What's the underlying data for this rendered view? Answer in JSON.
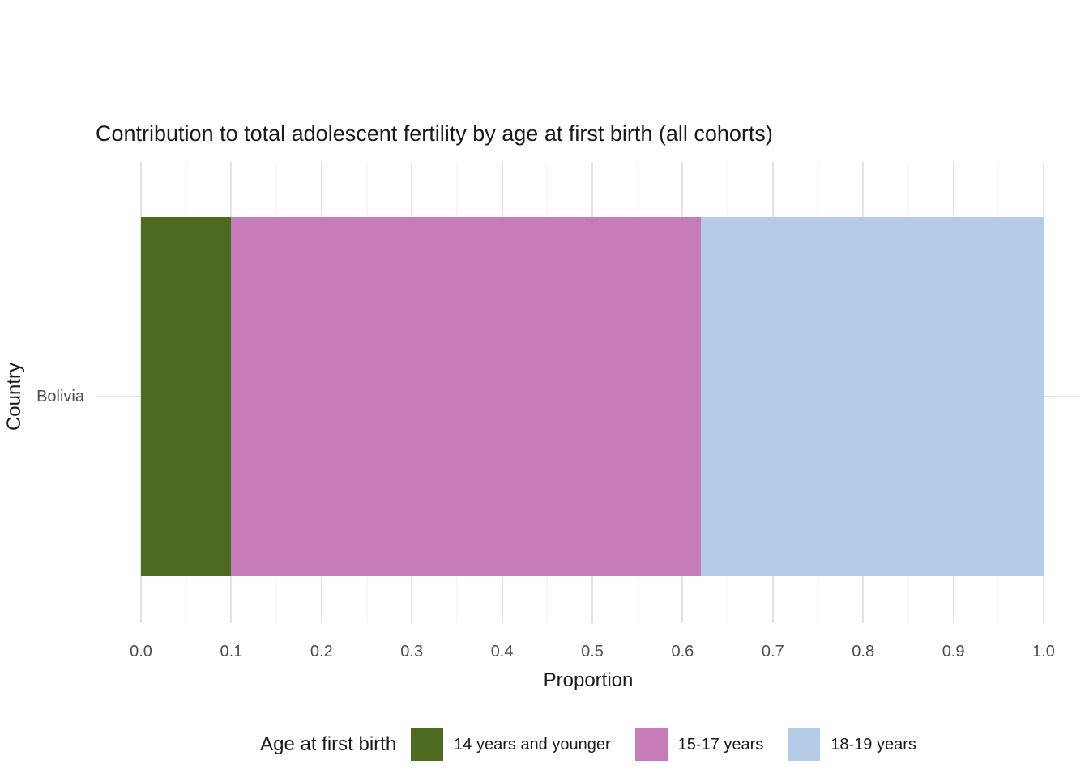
{
  "chart_data": {
    "type": "bar",
    "orientation": "horizontal",
    "stacked": true,
    "title": "Contribution to total adolescent fertility by age at first birth (all cohorts)",
    "xlabel": "Proportion",
    "ylabel": "Country",
    "categories": [
      "Bolivia"
    ],
    "series": [
      {
        "name": "14 years and younger",
        "values": [
          0.1
        ],
        "color": "#4d6b1f"
      },
      {
        "name": "15-17 years",
        "values": [
          0.52
        ],
        "color": "#c77cba"
      },
      {
        "name": "18-19 years",
        "values": [
          0.38
        ],
        "color": "#b5cce8"
      }
    ],
    "xlim": [
      0,
      1
    ],
    "x_ticks": [
      "0.0",
      "0.1",
      "0.2",
      "0.3",
      "0.4",
      "0.5",
      "0.6",
      "0.7",
      "0.8",
      "0.9",
      "1.0"
    ],
    "grid": "vertical major + minor, horizontal at category",
    "legend_title": "Age at first birth",
    "legend_position": "bottom",
    "background": "#ffffff",
    "gridline_color_major": "#e3e3e3",
    "gridline_color_minor": "#f0f0f0"
  }
}
